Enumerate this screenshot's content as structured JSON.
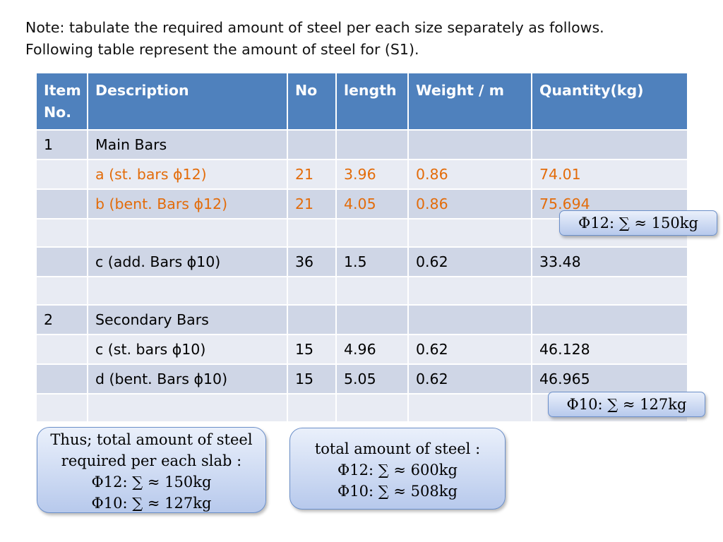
{
  "note": {
    "line1": "Note: tabulate the required amount of steel per each size separately as follows.",
    "line2": "Following table represent the amount of steel for (S1)."
  },
  "table": {
    "headers": {
      "item": "Item No.",
      "description": "Description",
      "no": "No",
      "length": "length",
      "weight": "Weight / m",
      "quantity": "Quantity(kg)"
    },
    "rows": [
      {
        "item": "1",
        "description": "Main Bars",
        "no": "",
        "length": "",
        "weight": "",
        "quantity": "",
        "highlight": false
      },
      {
        "item": "",
        "description": "a (st. bars ϕ12)",
        "no": "21",
        "length": "3.96",
        "weight": "0.86",
        "quantity": "74.01",
        "highlight": true
      },
      {
        "item": "",
        "description": "b (bent. Bars ϕ12)",
        "no": "21",
        "length": "4.05",
        "weight": "0.86",
        "quantity": "75.694",
        "highlight": true
      },
      {
        "item": "",
        "description": "",
        "no": "",
        "length": "",
        "weight": "",
        "quantity": "",
        "highlight": false
      },
      {
        "item": "",
        "description": "c (add. Bars ϕ10)",
        "no": "36",
        "length": "1.5",
        "weight": "0.62",
        "quantity": "33.48",
        "highlight": false
      },
      {
        "item": "",
        "description": "",
        "no": "",
        "length": "",
        "weight": "",
        "quantity": "",
        "highlight": false
      },
      {
        "item": "2",
        "description": "Secondary Bars",
        "no": "",
        "length": "",
        "weight": "",
        "quantity": "",
        "highlight": false
      },
      {
        "item": "",
        "description": "c (st. bars ϕ10)",
        "no": "15",
        "length": "4.96",
        "weight": "0.62",
        "quantity": "46.128",
        "highlight": false
      },
      {
        "item": "",
        "description": "d (bent. Bars ϕ10)",
        "no": "15",
        "length": "5.05",
        "weight": "0.62",
        "quantity": "46.965",
        "highlight": false
      },
      {
        "item": "",
        "description": "",
        "no": "",
        "length": "",
        "weight": "",
        "quantity": "",
        "highlight": false
      }
    ]
  },
  "callouts": {
    "sum_phi12": "Φ12:  ∑ ≈ 150kg",
    "sum_phi10": "Φ10:  ∑ ≈ 127kg",
    "per_slab": {
      "line1": "Thus; total amount of steel",
      "line2": "required per each slab :",
      "line3": "Φ12:  ∑ ≈ 150kg",
      "line4": "Φ10:  ∑ ≈ 127kg"
    },
    "total": {
      "line1": "total amount of steel :",
      "line2": "Φ12:  ∑ ≈ 600kg",
      "line3": "Φ10:  ∑ ≈ 508kg"
    }
  },
  "colors": {
    "header_bg": "#4f81bd",
    "row_odd": "#cfd6e6",
    "row_even": "#e8ebf3",
    "highlight_text": "#e36c0a"
  }
}
